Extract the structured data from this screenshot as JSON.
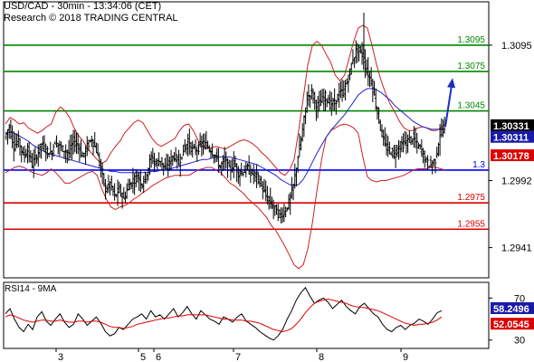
{
  "header": {
    "title": "USD/CAD - 30min - 13:34:06 (CET)",
    "credit": "Research © 2018 TRADING CENTRAL"
  },
  "colors": {
    "candle": "#000000",
    "bollinger": "#cc2222",
    "moving_average": "#2222cc",
    "pivot": "#0000ff",
    "resistance": "#008800",
    "support": "#dd0000",
    "rsi": "#000000",
    "rsi_ma": "#dd0000",
    "arrow": "#1a2fc4",
    "price_badge": "#000000",
    "ma_badge": "#1a1aa8",
    "lower_band_badge": "#dd0000"
  },
  "chart_data": [
    {
      "type": "candlestick",
      "title": "USD/CAD - 30min",
      "ylim": [
        1.2918,
        1.3128
      ],
      "y_ticks": [
        1.2941,
        1.2992,
        1.3095
      ],
      "x_ticks": [
        "3",
        "5",
        "6",
        "7",
        "8",
        "9"
      ],
      "levels": [
        {
          "name": "resistance",
          "label": "1.3095",
          "value": 1.3095
        },
        {
          "name": "resistance",
          "label": "1.3075",
          "value": 1.3075
        },
        {
          "name": "resistance",
          "label": "1.3045",
          "value": 1.3045
        },
        {
          "name": "pivot",
          "label": "1.3",
          "value": 1.3
        },
        {
          "name": "support",
          "label": "1.2975",
          "value": 1.2975
        },
        {
          "name": "support",
          "label": "1.2955",
          "value": 1.2955
        }
      ],
      "price_badges": [
        {
          "name": "last-price",
          "label": "1.30331",
          "value": 1.30331
        },
        {
          "name": "moving-average",
          "label": "1.30311",
          "value": 1.30311
        },
        {
          "name": "lower-band",
          "label": "1.30178",
          "value": 1.30178
        }
      ],
      "close_path": [
        1.3025,
        1.3033,
        1.3018,
        1.3023,
        1.3011,
        1.3015,
        1.3004,
        1.3011,
        1.302,
        1.3015,
        1.3012,
        1.3022,
        1.3018,
        1.3015,
        1.3013,
        1.3022,
        1.3019,
        1.301,
        1.3018,
        1.3024,
        1.3015,
        1.3,
        1.2985,
        1.299,
        1.298,
        1.2985,
        1.2978,
        1.2988,
        1.2992,
        1.2995,
        1.299,
        1.2998,
        1.301,
        1.3005,
        1.3008,
        1.3,
        1.3007,
        1.3011,
        1.3005,
        1.3016,
        1.3021,
        1.3015,
        1.3016,
        1.302,
        1.3019,
        1.3015,
        1.3011,
        1.3002,
        1.3008,
        1.3,
        1.3005,
        1.2998,
        1.2999,
        1.3001,
        1.2997,
        1.2996,
        1.2988,
        1.298,
        1.2975,
        1.297,
        1.2965,
        1.2968,
        1.2975,
        1.2988,
        1.301,
        1.303,
        1.3055,
        1.306,
        1.3048,
        1.3052,
        1.3056,
        1.305,
        1.3051,
        1.3058,
        1.306,
        1.307,
        1.3085,
        1.3092,
        1.3088,
        1.3075,
        1.3068,
        1.305,
        1.3032,
        1.3018,
        1.3015,
        1.3012,
        1.3018,
        1.302,
        1.3022,
        1.3025,
        1.3019,
        1.3015,
        1.3006,
        1.3004,
        1.3008,
        1.3028,
        1.3033
      ],
      "upper_band": [
        1.3035,
        1.304,
        1.3038,
        1.3035,
        1.3036,
        1.3032,
        1.303,
        1.3028,
        1.303,
        1.3033,
        1.3035,
        1.3044,
        1.3048,
        1.3045,
        1.304,
        1.3032,
        1.3026,
        1.3022,
        1.3016,
        1.3012,
        1.3008,
        1.3005,
        1.3007,
        1.3013,
        1.3018,
        1.3022,
        1.3028,
        1.3032,
        1.3036,
        1.3038,
        1.3036,
        1.303,
        1.3024,
        1.302,
        1.3018,
        1.302,
        1.3022,
        1.3024,
        1.303,
        1.3034,
        1.3035,
        1.303,
        1.3023,
        1.3018,
        1.3017,
        1.3017,
        1.3018,
        1.3017,
        1.3016,
        1.3018,
        1.302,
        1.3022,
        1.3023,
        1.3022,
        1.302,
        1.3017,
        1.3013,
        1.301,
        1.3006,
        1.3002,
        1.2998,
        1.2996,
        1.3,
        1.3008,
        1.303,
        1.3055,
        1.308,
        1.3095,
        1.3098,
        1.3095,
        1.3088,
        1.3082,
        1.3072,
        1.3068,
        1.3072,
        1.3085,
        1.3098,
        1.3108,
        1.311,
        1.3108,
        1.3095,
        1.308,
        1.3068,
        1.3058,
        1.305,
        1.3044,
        1.3037,
        1.3032,
        1.303,
        1.303,
        1.3032,
        1.3033,
        1.3032,
        1.303,
        1.303,
        1.3032,
        1.3035
      ],
      "lower_band": [
        1.2998,
        1.3,
        1.3002,
        1.3003,
        1.3002,
        1.3,
        1.2998,
        1.2997,
        1.2996,
        1.2998,
        1.3001,
        1.2998,
        1.2994,
        1.299,
        1.299,
        1.2992,
        1.2994,
        1.2996,
        1.2998,
        1.2999,
        1.2996,
        1.2986,
        1.2978,
        1.2972,
        1.297,
        1.2972,
        1.2973,
        1.2975,
        1.2978,
        1.298,
        1.2983,
        1.2985,
        1.2988,
        1.299,
        1.2992,
        1.2994,
        1.2995,
        1.2996,
        1.2996,
        1.2996,
        1.2996,
        1.2998,
        1.3,
        1.3001,
        1.3002,
        1.3002,
        1.3,
        1.2998,
        1.2994,
        1.299,
        1.2988,
        1.2985,
        1.2982,
        1.2978,
        1.2975,
        1.2972,
        1.2968,
        1.2964,
        1.2958,
        1.2954,
        1.2948,
        1.2942,
        1.2935,
        1.2928,
        1.2925,
        1.2928,
        1.294,
        1.296,
        1.2985,
        1.3008,
        1.3025,
        1.303,
        1.3032,
        1.3034,
        1.3035,
        1.3034,
        1.3032,
        1.3028,
        1.301,
        1.2995,
        1.2992,
        1.2991,
        1.2992,
        1.2992,
        1.2993,
        1.2994,
        1.2995,
        1.2996,
        1.2998,
        1.3,
        1.3001,
        1.3001,
        1.3001,
        1.3002,
        1.3002,
        1.3001,
        1.3
      ],
      "moving_average_path": [
        1.3028,
        1.3029,
        1.3028,
        1.3026,
        1.3024,
        1.3022,
        1.3019,
        1.3017,
        1.3015,
        1.3013,
        1.3012,
        1.3011,
        1.301,
        1.3009,
        1.3008,
        1.3007,
        1.3006,
        1.3005,
        1.3004,
        1.3003,
        1.3002,
        1.3001,
        1.3,
        1.2999,
        1.2999,
        1.2998,
        1.2998,
        1.2998,
        1.2998,
        1.2998,
        1.2998,
        1.2998,
        1.2999,
        1.2999,
        1.3,
        1.3,
        1.3001,
        1.3002,
        1.3003,
        1.3004,
        1.3005,
        1.3006,
        1.3007,
        1.3008,
        1.3008,
        1.3009,
        1.301,
        1.301,
        1.301,
        1.301,
        1.3009,
        1.3008,
        1.3007,
        1.3006,
        1.3005,
        1.3004,
        1.3002,
        1.3,
        1.2998,
        1.2996,
        1.2993,
        1.2991,
        1.2989,
        1.2988,
        1.2989,
        1.2993,
        1.2999,
        1.3006,
        1.3013,
        1.3019,
        1.3025,
        1.303,
        1.3034,
        1.3038,
        1.3042,
        1.3047,
        1.3052,
        1.3057,
        1.306,
        1.3062,
        1.3062,
        1.3061,
        1.3059,
        1.3056,
        1.3053,
        1.3049,
        1.3046,
        1.3043,
        1.304,
        1.3037,
        1.3035,
        1.3033,
        1.3032,
        1.3031,
        1.3031,
        1.3031,
        1.3031
      ],
      "projection_arrow": {
        "from": 1.3033,
        "to": 1.307
      }
    },
    {
      "type": "line",
      "title": "RSI14 - 9MA",
      "ylim": [
        22,
        85
      ],
      "y_ticks": [
        30,
        70
      ],
      "value_badges": [
        {
          "name": "rsi",
          "label": "58.2496",
          "value": 58.2496
        },
        {
          "name": "rsi-ma",
          "label": "52.0545",
          "value": 52.0545
        }
      ],
      "series": [
        {
          "name": "RSI14",
          "values": [
            55,
            60,
            50,
            42,
            38,
            45,
            40,
            52,
            57,
            48,
            44,
            50,
            55,
            47,
            42,
            45,
            55,
            50,
            44,
            48,
            52,
            46,
            38,
            34,
            36,
            42,
            40,
            45,
            50,
            52,
            55,
            50,
            58,
            52,
            54,
            50,
            55,
            60,
            52,
            56,
            62,
            55,
            50,
            58,
            54,
            50,
            48,
            45,
            52,
            50,
            47,
            52,
            55,
            48,
            45,
            42,
            38,
            35,
            32,
            30,
            34,
            40,
            50,
            58,
            68,
            75,
            80,
            72,
            65,
            68,
            70,
            66,
            60,
            64,
            68,
            62,
            58,
            55,
            62,
            65,
            60,
            55,
            52,
            45,
            40,
            38,
            42,
            44,
            40,
            44,
            46,
            50,
            48,
            45,
            50,
            56,
            58
          ]
        },
        {
          "name": "9MA",
          "values": [
            52,
            54,
            53,
            51,
            49,
            48,
            47,
            48,
            49,
            49,
            48,
            48,
            49,
            48,
            47,
            47,
            48,
            48,
            47,
            48,
            48,
            47,
            45,
            43,
            42,
            42,
            41,
            42,
            43,
            45,
            46,
            47,
            48,
            49,
            50,
            51,
            51,
            52,
            53,
            53,
            54,
            54,
            54,
            54,
            54,
            53,
            52,
            51,
            50,
            50,
            49,
            49,
            49,
            48,
            48,
            47,
            46,
            44,
            42,
            40,
            39,
            38,
            39,
            41,
            45,
            50,
            56,
            61,
            65,
            67,
            68,
            69,
            68,
            67,
            66,
            65,
            63,
            62,
            61,
            61,
            60,
            59,
            58,
            56,
            54,
            52,
            50,
            48,
            46,
            45,
            44,
            45,
            45,
            46,
            47,
            49,
            52
          ]
        }
      ]
    }
  ]
}
